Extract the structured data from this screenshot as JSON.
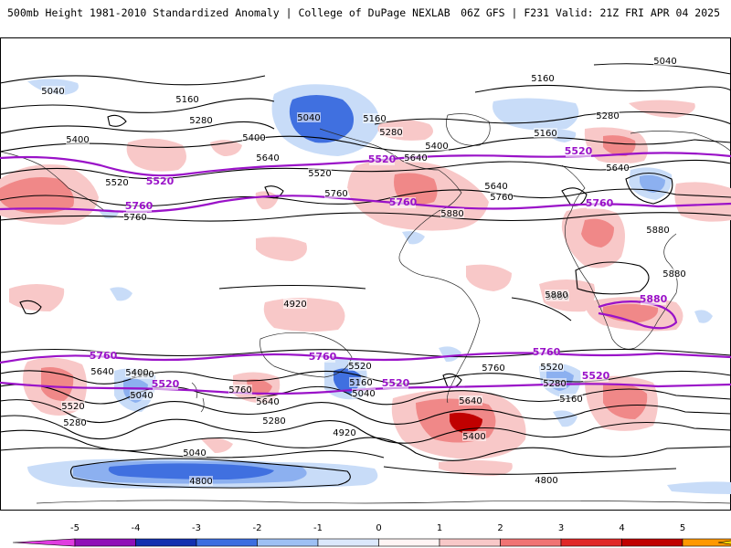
{
  "header": {
    "left": "500mb Height 1981-2010 Standardized Anomaly | College of DuPage NEXLAB",
    "right": "06Z GFS | F231 Valid: 21Z FRI APR 04 2025"
  },
  "colors": {
    "contour": "#000000",
    "highlight_contour": "#9a12c8",
    "coast": "#2a2a2a",
    "pos_1": "#f8c8c8",
    "pos_2": "#f08888",
    "pos_3": "#e04848",
    "pos_4": "#c00000",
    "neg_1": "#c8dcf8",
    "neg_2": "#8cb0f0",
    "neg_3": "#4070e0",
    "neg_4": "#1a3cc0"
  },
  "colorbar": {
    "ticks": [
      "-5",
      "-4",
      "-3",
      "-2",
      "-1",
      "0",
      "1",
      "2",
      "3",
      "4",
      "5"
    ],
    "bins": [
      "#e03ce0",
      "#9010b8",
      "#1430b0",
      "#3c6ee0",
      "#9ec0f4",
      "#dce8fc",
      "#fff4f4",
      "#f8c8c8",
      "#f07474",
      "#e02828",
      "#c00000",
      "#ff9800",
      "#ffd400"
    ]
  },
  "labels": {
    "black": [
      {
        "t": "5040"
      },
      {
        "t": "5160"
      },
      {
        "t": "5280"
      },
      {
        "t": "5400"
      },
      {
        "t": "5640"
      },
      {
        "t": "5520"
      },
      {
        "t": "5760"
      },
      {
        "t": "5040"
      },
      {
        "t": "5160"
      },
      {
        "t": "5280"
      },
      {
        "t": "5400"
      },
      {
        "t": "5640"
      },
      {
        "t": "5520"
      },
      {
        "t": "5760"
      },
      {
        "t": "5640"
      },
      {
        "t": "5880"
      },
      {
        "t": "5040"
      },
      {
        "t": "5160"
      },
      {
        "t": "5160"
      },
      {
        "t": "5280"
      },
      {
        "t": "5760"
      },
      {
        "t": "5640"
      },
      {
        "t": "5880"
      },
      {
        "t": "5880"
      },
      {
        "t": "5880"
      },
      {
        "t": "5400"
      },
      {
        "t": "5160"
      },
      {
        "t": "5040"
      },
      {
        "t": "5640"
      },
      {
        "t": "5520"
      },
      {
        "t": "5280"
      },
      {
        "t": "5400"
      },
      {
        "t": "5760"
      },
      {
        "t": "5640"
      },
      {
        "t": "5280"
      },
      {
        "t": "5520"
      },
      {
        "t": "5160"
      },
      {
        "t": "5040"
      },
      {
        "t": "4920"
      },
      {
        "t": "5760"
      },
      {
        "t": "5640"
      },
      {
        "t": "5400"
      },
      {
        "t": "5520"
      },
      {
        "t": "5280"
      },
      {
        "t": "5160"
      },
      {
        "t": "5040"
      },
      {
        "t": "4800"
      },
      {
        "t": "4800"
      },
      {
        "t": "4920"
      },
      {
        "t": "5880"
      }
    ],
    "purple": [
      {
        "t": "5520"
      },
      {
        "t": "5520"
      },
      {
        "t": "5520"
      },
      {
        "t": "5760"
      },
      {
        "t": "5760"
      },
      {
        "t": "5760"
      },
      {
        "t": "5880"
      },
      {
        "t": "5760"
      },
      {
        "t": "5760"
      },
      {
        "t": "5760"
      },
      {
        "t": "5520"
      },
      {
        "t": "5520"
      },
      {
        "t": "5520"
      }
    ]
  }
}
